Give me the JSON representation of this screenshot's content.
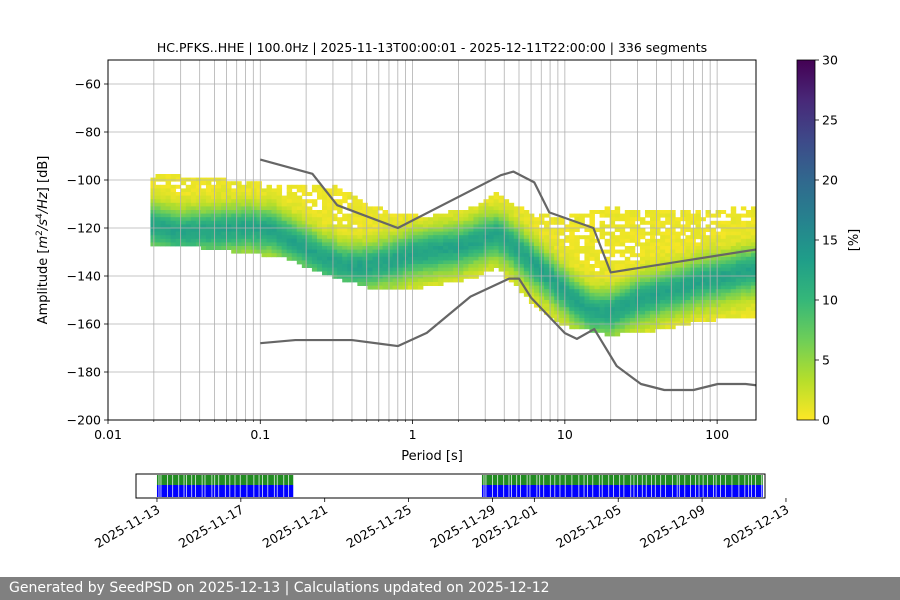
{
  "chart_data": [
    {
      "type": "heatmap",
      "title": "HC.PFKS..HHE | 100.0Hz | 2025-11-13T00:00:01 - 2025-12-11T22:00:00 | 336 segments",
      "xlabel": "Period [s]",
      "ylabel_parts": [
        "Amplitude [",
        "m",
        "2",
        "/",
        "s",
        "4",
        "/",
        "Hz",
        "] [dB]"
      ],
      "x_scale": "log",
      "xlim": [
        0.01,
        180
      ],
      "ylim": [
        -200,
        -50
      ],
      "x_ticks": [
        {
          "value": 0.01,
          "label": "0.01"
        },
        {
          "value": 0.1,
          "label": "0.1"
        },
        {
          "value": 1,
          "label": "1"
        },
        {
          "value": 10,
          "label": "10"
        },
        {
          "value": 100,
          "label": "100"
        }
      ],
      "y_ticks": [
        {
          "value": -60,
          "label": "−60"
        },
        {
          "value": -80,
          "label": "−80"
        },
        {
          "value": -100,
          "label": "−100"
        },
        {
          "value": -120,
          "label": "−120"
        },
        {
          "value": -140,
          "label": "−140"
        },
        {
          "value": -160,
          "label": "−160"
        },
        {
          "value": -180,
          "label": "−180"
        },
        {
          "value": -200,
          "label": "−200"
        }
      ],
      "grid": true,
      "colorbar": {
        "label": "[%]",
        "range": [
          0,
          30
        ],
        "ticks": [
          {
            "value": 0,
            "label": "0"
          },
          {
            "value": 5,
            "label": "5"
          },
          {
            "value": 10,
            "label": "10"
          },
          {
            "value": 15,
            "label": "15"
          },
          {
            "value": 20,
            "label": "20"
          },
          {
            "value": 25,
            "label": "25"
          },
          {
            "value": 30,
            "label": "30"
          }
        ],
        "colormap": [
          "#fde725",
          "#b5de2b",
          "#6ece58",
          "#35b779",
          "#1f9e89",
          "#26828e",
          "#31688e",
          "#3e4989",
          "#482878",
          "#440154"
        ]
      },
      "psd_mode": {
        "period": [
          0.019,
          0.03,
          0.05,
          0.08,
          0.12,
          0.18,
          0.25,
          0.35,
          0.5,
          0.7,
          1.0,
          1.5,
          2.0,
          3.0,
          3.6,
          4.5,
          6.0,
          8.0,
          11,
          15,
          20,
          30,
          50,
          80,
          120,
          180
        ],
        "db": [
          -118,
          -121,
          -120,
          -119,
          -120,
          -126,
          -131,
          -135,
          -135,
          -133,
          -130,
          -128,
          -127,
          -123,
          -122,
          -126,
          -133,
          -140,
          -148,
          -154,
          -154,
          -149,
          -145,
          -141,
          -139,
          -136
        ]
      },
      "psd_spread": {
        "period": [
          0.019,
          0.05,
          0.15,
          0.3,
          0.6,
          1.2,
          2.5,
          3.6,
          6,
          10,
          20,
          40,
          80,
          180
        ],
        "upper": [
          -98,
          -100,
          -103,
          -103,
          -112,
          -116,
          -112,
          -106,
          -115,
          -116,
          -112,
          -114,
          -113,
          -112
        ],
        "lower": [
          -126,
          -128,
          -132,
          -140,
          -145,
          -144,
          -140,
          -136,
          -150,
          -160,
          -164,
          -162,
          -158,
          -156
        ]
      },
      "reference_models": [
        {
          "name": "high noise model",
          "period": [
            0.1,
            0.22,
            0.32,
            0.8,
            3.8,
            4.6,
            6.3,
            7.9,
            15.4,
            20,
            354.8
          ],
          "db": [
            -91.5,
            -97.4,
            -110.5,
            -120,
            -98,
            -96.5,
            -101,
            -113.5,
            -120,
            -138.5,
            -126
          ]
        },
        {
          "name": "low noise model",
          "period": [
            0.1,
            0.17,
            0.4,
            0.8,
            1.24,
            2.4,
            4.3,
            5,
            6,
            10,
            12,
            15.6,
            21.9,
            31.6,
            45,
            70,
            101,
            154,
            328
          ],
          "db": [
            -168,
            -166.7,
            -166.7,
            -169.2,
            -163.7,
            -148.6,
            -141.1,
            -141.1,
            -149,
            -163.8,
            -166.2,
            -162.1,
            -177.5,
            -185,
            -187.5,
            -187.5,
            -185,
            -185,
            -187.5
          ]
        }
      ]
    },
    {
      "type": "timeline",
      "x_range_dates": [
        "2025-11-12",
        "2025-12-12"
      ],
      "date_ticks": [
        "2025-11-13",
        "2025-11-17",
        "2025-11-21",
        "2025-11-25",
        "2025-11-29",
        "2025-12-01",
        "2025-12-05",
        "2025-12-09",
        "2025-12-13"
      ],
      "coverage_intervals": [
        {
          "start": "2025-11-13",
          "end": "2025-11-19.5"
        },
        {
          "start": "2025-11-28.5",
          "end": "2025-12-11.9"
        }
      ],
      "top_color": "#228b22",
      "bottom_color": "#0000ff"
    }
  ],
  "footer": "Generated by SeedPSD on 2025-12-13 | Calculations updated on 2025-12-12"
}
